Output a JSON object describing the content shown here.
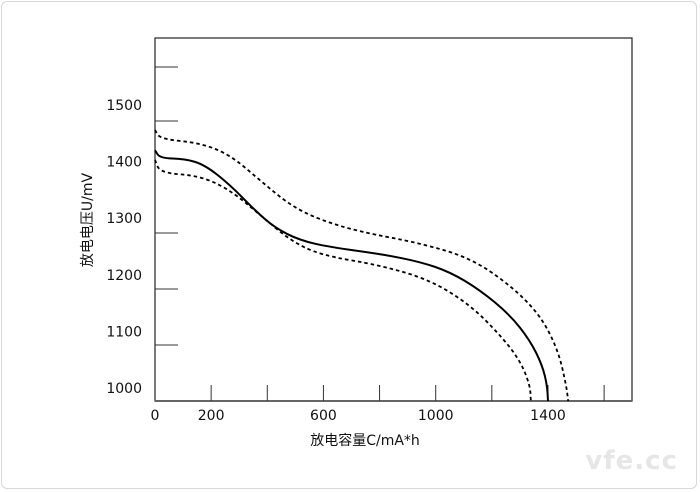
{
  "chart_data": {
    "type": "line",
    "title": "",
    "xlabel": "放电容量C/mA*h",
    "ylabel": "放电电压U/mV",
    "xlim": [
      0,
      1700
    ],
    "ylim": [
      977,
      1618
    ],
    "x_ticks": [
      0,
      200,
      600,
      1000,
      1400
    ],
    "y_ticks": [
      1000,
      1100,
      1200,
      1300,
      1400,
      1500
    ],
    "grid": false,
    "series": [
      {
        "style": "solid",
        "color": "#000000",
        "x": [
          0,
          18,
          107,
          178,
          267,
          356,
          427,
          516,
          623,
          801,
          944,
          1051,
          1158,
          1265,
          1336,
          1379,
          1397,
          1400
        ],
        "y": [
          1420,
          1406,
          1405,
          1394,
          1359,
          1314,
          1283,
          1261,
          1249,
          1237,
          1223,
          1205,
          1173,
          1129,
          1084,
          1041,
          1005,
          977
        ]
      },
      {
        "style": "dashed",
        "color": "#000000",
        "x": [
          0,
          18,
          160,
          267,
          374,
          481,
          588,
          730,
          944,
          1122,
          1265,
          1372,
          1436,
          1465,
          1472
        ],
        "y": [
          1456,
          1440,
          1433,
          1412,
          1367,
          1323,
          1297,
          1276,
          1256,
          1230,
          1182,
          1129,
          1067,
          1005,
          977
        ]
      },
      {
        "style": "dashed",
        "color": "#000000",
        "x": [
          0,
          18,
          160,
          267,
          374,
          481,
          588,
          801,
          980,
          1122,
          1229,
          1300,
          1336,
          1339
        ],
        "y": [
          1403,
          1380,
          1375,
          1350,
          1306,
          1261,
          1235,
          1217,
          1191,
          1147,
          1094,
          1049,
          1005,
          977
        ]
      }
    ]
  },
  "watermark": "vfe.cc"
}
